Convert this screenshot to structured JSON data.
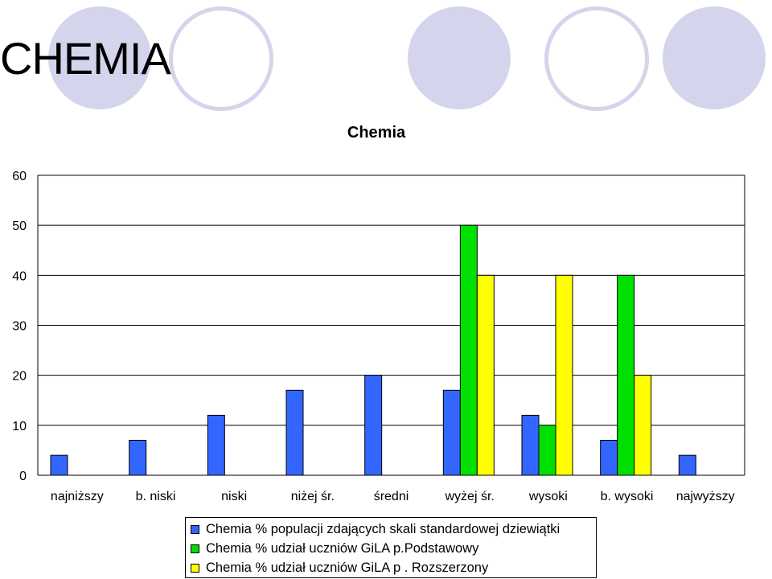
{
  "slide": {
    "title": "CHEMIA"
  },
  "chart_data": {
    "type": "bar",
    "title": "Chemia",
    "xlabel": "",
    "ylabel": "",
    "ylim": [
      0,
      60
    ],
    "yticks": [
      0,
      10,
      20,
      30,
      40,
      50,
      60
    ],
    "grid": true,
    "legend_position": "bottom",
    "categories": [
      "najniższy",
      "b. niski",
      "niski",
      "niżej śr.",
      "średni",
      "wyżej śr.",
      "wysoki",
      "b. wysoki",
      "najwyższy"
    ],
    "series": [
      {
        "name": "Chemia % populacji zdających skali standardowej dziewiątki",
        "color": "#3366ff",
        "values": [
          4,
          7,
          12,
          17,
          20,
          17,
          12,
          7,
          4
        ]
      },
      {
        "name": "Chemia % udział uczniów GiLA p.Podstawowy",
        "color": "#00e000",
        "values": [
          null,
          null,
          null,
          null,
          null,
          50,
          10,
          40,
          null
        ]
      },
      {
        "name": "Chemia % udział uczniów GiLA p . Rozszerzony",
        "color": "#ffff00",
        "values": [
          null,
          null,
          null,
          null,
          null,
          40,
          40,
          20,
          null
        ]
      }
    ]
  },
  "colors": {
    "decoration": "#d4d4ec",
    "gridline": "#000000"
  }
}
